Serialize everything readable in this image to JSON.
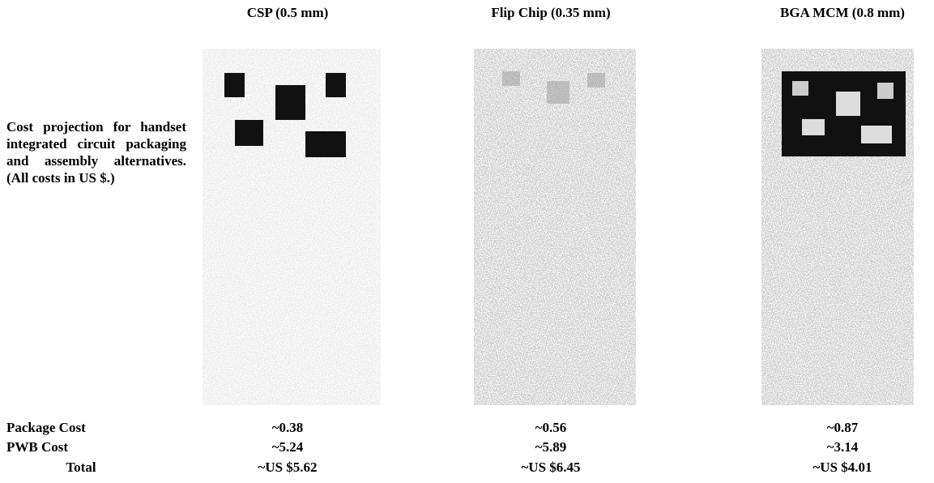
{
  "columns": [
    "CSP (0.5 mm)",
    "Flip Chip (0.35 mm)",
    "BGA MCM (0.8 mm)"
  ],
  "caption": "Cost projection for handset integrated circuit packaging and assembly alternatives. (All costs in US $.)",
  "table": {
    "rows": [
      [
        "Package Cost",
        "~0.38",
        "~0.56",
        "~0.87"
      ],
      [
        "PWB Cost",
        "~5.24",
        "~5.89",
        "~3.14"
      ],
      [
        "Total",
        "~US $5.62",
        "~US $6.45",
        "~US $4.01"
      ]
    ]
  }
}
